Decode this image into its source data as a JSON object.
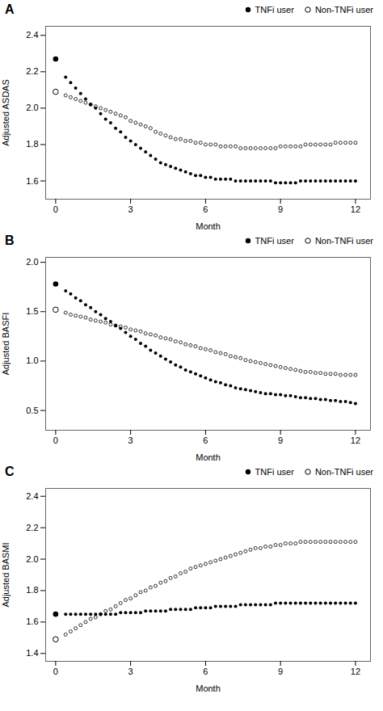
{
  "chart_data": [
    {
      "type": "scatter",
      "title": "A",
      "xlabel": "Month",
      "ylabel": "Adjusted ASDAS",
      "xlim": [
        -0.4,
        12.6
      ],
      "xticks": [
        0,
        3,
        6,
        9,
        12
      ],
      "ylim": [
        1.5,
        2.45
      ],
      "yticks": [
        1.6,
        1.8,
        {
          "value": 2,
          "label": "2.0"
        },
        2.2,
        2.4
      ],
      "legend": "upper right",
      "series": [
        {
          "name": "TNFi user",
          "color": "black",
          "marker": "filled_circle",
          "x": [
            0,
            0.4,
            0.6,
            0.8,
            1.0,
            1.2,
            1.4,
            1.6,
            1.8,
            2.0,
            2.2,
            2.4,
            2.6,
            2.8,
            3.0,
            3.2,
            3.4,
            3.6,
            3.8,
            4.0,
            4.2,
            4.4,
            4.6,
            4.8,
            5.0,
            5.2,
            5.4,
            5.6,
            5.8,
            6.0,
            6.2,
            6.4,
            6.6,
            6.8,
            7.0,
            7.2,
            7.4,
            7.6,
            7.8,
            8.0,
            8.2,
            8.4,
            8.6,
            8.8,
            9.0,
            9.2,
            9.4,
            9.6,
            9.8,
            10.0,
            10.2,
            10.4,
            10.6,
            10.8,
            11.0,
            11.2,
            11.4,
            11.6,
            11.8,
            12.0
          ],
          "values": [
            2.27,
            2.17,
            2.14,
            2.11,
            2.08,
            2.05,
            2.02,
            2.0,
            1.97,
            1.94,
            1.92,
            1.89,
            1.87,
            1.84,
            1.82,
            1.8,
            1.78,
            1.76,
            1.74,
            1.72,
            1.7,
            1.69,
            1.68,
            1.67,
            1.66,
            1.65,
            1.64,
            1.63,
            1.63,
            1.62,
            1.62,
            1.61,
            1.61,
            1.61,
            1.61,
            1.6,
            1.6,
            1.6,
            1.6,
            1.6,
            1.6,
            1.6,
            1.6,
            1.59,
            1.59,
            1.59,
            1.59,
            1.59,
            1.6,
            1.6,
            1.6,
            1.6,
            1.6,
            1.6,
            1.6,
            1.6,
            1.6,
            1.6,
            1.6,
            1.6
          ]
        },
        {
          "name": "Non-TNFi user",
          "color": "black",
          "marker": "open_circle",
          "x": [
            0,
            0.4,
            0.6,
            0.8,
            1.0,
            1.2,
            1.4,
            1.6,
            1.8,
            2.0,
            2.2,
            2.4,
            2.6,
            2.8,
            3.0,
            3.2,
            3.4,
            3.6,
            3.8,
            4.0,
            4.2,
            4.4,
            4.6,
            4.8,
            5.0,
            5.2,
            5.4,
            5.6,
            5.8,
            6.0,
            6.2,
            6.4,
            6.6,
            6.8,
            7.0,
            7.2,
            7.4,
            7.6,
            7.8,
            8.0,
            8.2,
            8.4,
            8.6,
            8.8,
            9.0,
            9.2,
            9.4,
            9.6,
            9.8,
            10.0,
            10.2,
            10.4,
            10.6,
            10.8,
            11.0,
            11.2,
            11.4,
            11.6,
            11.8,
            12.0
          ],
          "values": [
            2.09,
            2.07,
            2.06,
            2.05,
            2.04,
            2.03,
            2.02,
            2.01,
            2.0,
            1.99,
            1.98,
            1.97,
            1.96,
            1.95,
            1.93,
            1.92,
            1.91,
            1.9,
            1.89,
            1.87,
            1.86,
            1.85,
            1.84,
            1.83,
            1.83,
            1.82,
            1.82,
            1.81,
            1.81,
            1.8,
            1.8,
            1.8,
            1.79,
            1.79,
            1.79,
            1.79,
            1.78,
            1.78,
            1.78,
            1.78,
            1.78,
            1.78,
            1.78,
            1.78,
            1.79,
            1.79,
            1.79,
            1.79,
            1.79,
            1.8,
            1.8,
            1.8,
            1.8,
            1.8,
            1.8,
            1.81,
            1.81,
            1.81,
            1.81,
            1.81
          ]
        }
      ]
    },
    {
      "type": "scatter",
      "title": "B",
      "xlabel": "Month",
      "ylabel": "Adjusted BASFI",
      "xlim": [
        -0.4,
        12.6
      ],
      "xticks": [
        0,
        3,
        6,
        9,
        12
      ],
      "ylim": [
        0.3,
        2.05
      ],
      "yticks": [
        0.5,
        {
          "value": 1,
          "label": "1.0"
        },
        1.5,
        {
          "value": 2,
          "label": "2.0"
        }
      ],
      "legend": "upper right",
      "series": [
        {
          "name": "TNFi user",
          "color": "black",
          "marker": "filled_circle",
          "x": [
            0,
            0.4,
            0.6,
            0.8,
            1.0,
            1.2,
            1.4,
            1.6,
            1.8,
            2.0,
            2.2,
            2.4,
            2.6,
            2.8,
            3.0,
            3.2,
            3.4,
            3.6,
            3.8,
            4.0,
            4.2,
            4.4,
            4.6,
            4.8,
            5.0,
            5.2,
            5.4,
            5.6,
            5.8,
            6.0,
            6.2,
            6.4,
            6.6,
            6.8,
            7.0,
            7.2,
            7.4,
            7.6,
            7.8,
            8.0,
            8.2,
            8.4,
            8.6,
            8.8,
            9.0,
            9.2,
            9.4,
            9.6,
            9.8,
            10.0,
            10.2,
            10.4,
            10.6,
            10.8,
            11.0,
            11.2,
            11.4,
            11.6,
            11.8,
            12.0
          ],
          "values": [
            1.78,
            1.71,
            1.68,
            1.64,
            1.61,
            1.57,
            1.54,
            1.5,
            1.47,
            1.43,
            1.4,
            1.36,
            1.33,
            1.29,
            1.25,
            1.22,
            1.18,
            1.15,
            1.11,
            1.08,
            1.05,
            1.02,
            0.99,
            0.96,
            0.94,
            0.91,
            0.89,
            0.87,
            0.85,
            0.83,
            0.81,
            0.79,
            0.78,
            0.76,
            0.75,
            0.73,
            0.72,
            0.71,
            0.7,
            0.69,
            0.68,
            0.67,
            0.67,
            0.66,
            0.66,
            0.65,
            0.65,
            0.64,
            0.63,
            0.63,
            0.62,
            0.62,
            0.61,
            0.61,
            0.6,
            0.6,
            0.59,
            0.59,
            0.58,
            0.57
          ]
        },
        {
          "name": "Non-TNFi user",
          "color": "black",
          "marker": "open_circle",
          "x": [
            0,
            0.4,
            0.6,
            0.8,
            1.0,
            1.2,
            1.4,
            1.6,
            1.8,
            2.0,
            2.2,
            2.4,
            2.6,
            2.8,
            3.0,
            3.2,
            3.4,
            3.6,
            3.8,
            4.0,
            4.2,
            4.4,
            4.6,
            4.8,
            5.0,
            5.2,
            5.4,
            5.6,
            5.8,
            6.0,
            6.2,
            6.4,
            6.6,
            6.8,
            7.0,
            7.2,
            7.4,
            7.6,
            7.8,
            8.0,
            8.2,
            8.4,
            8.6,
            8.8,
            9.0,
            9.2,
            9.4,
            9.6,
            9.8,
            10.0,
            10.2,
            10.4,
            10.6,
            10.8,
            11.0,
            11.2,
            11.4,
            11.6,
            11.8,
            12.0
          ],
          "values": [
            1.52,
            1.49,
            1.47,
            1.46,
            1.45,
            1.44,
            1.42,
            1.41,
            1.4,
            1.39,
            1.37,
            1.36,
            1.35,
            1.34,
            1.32,
            1.31,
            1.3,
            1.28,
            1.27,
            1.26,
            1.24,
            1.23,
            1.22,
            1.2,
            1.19,
            1.17,
            1.16,
            1.15,
            1.13,
            1.12,
            1.11,
            1.09,
            1.08,
            1.07,
            1.05,
            1.04,
            1.03,
            1.01,
            1.0,
            0.99,
            0.98,
            0.97,
            0.96,
            0.95,
            0.94,
            0.93,
            0.92,
            0.91,
            0.9,
            0.89,
            0.89,
            0.88,
            0.88,
            0.87,
            0.87,
            0.87,
            0.86,
            0.86,
            0.86,
            0.86
          ]
        }
      ]
    },
    {
      "type": "scatter",
      "title": "C",
      "xlabel": "Month",
      "ylabel": "Adjusted BASMI",
      "xlim": [
        -0.4,
        12.6
      ],
      "xticks": [
        0,
        3,
        6,
        9,
        12
      ],
      "ylim": [
        1.35,
        2.45
      ],
      "yticks": [
        1.4,
        1.6,
        1.8,
        {
          "value": 2,
          "label": "2.0"
        },
        2.2,
        2.4
      ],
      "legend": "upper right",
      "series": [
        {
          "name": "TNFi user",
          "color": "black",
          "marker": "filled_circle",
          "x": [
            0,
            0.4,
            0.6,
            0.8,
            1.0,
            1.2,
            1.4,
            1.6,
            1.8,
            2.0,
            2.2,
            2.4,
            2.6,
            2.8,
            3.0,
            3.2,
            3.4,
            3.6,
            3.8,
            4.0,
            4.2,
            4.4,
            4.6,
            4.8,
            5.0,
            5.2,
            5.4,
            5.6,
            5.8,
            6.0,
            6.2,
            6.4,
            6.6,
            6.8,
            7.0,
            7.2,
            7.4,
            7.6,
            7.8,
            8.0,
            8.2,
            8.4,
            8.6,
            8.8,
            9.0,
            9.2,
            9.4,
            9.6,
            9.8,
            10.0,
            10.2,
            10.4,
            10.6,
            10.8,
            11.0,
            11.2,
            11.4,
            11.6,
            11.8,
            12.0
          ],
          "values": [
            1.65,
            1.65,
            1.65,
            1.65,
            1.65,
            1.65,
            1.65,
            1.65,
            1.65,
            1.65,
            1.65,
            1.65,
            1.66,
            1.66,
            1.66,
            1.66,
            1.66,
            1.67,
            1.67,
            1.67,
            1.67,
            1.67,
            1.68,
            1.68,
            1.68,
            1.68,
            1.68,
            1.69,
            1.69,
            1.69,
            1.69,
            1.7,
            1.7,
            1.7,
            1.7,
            1.7,
            1.71,
            1.71,
            1.71,
            1.71,
            1.71,
            1.71,
            1.71,
            1.72,
            1.72,
            1.72,
            1.72,
            1.72,
            1.72,
            1.72,
            1.72,
            1.72,
            1.72,
            1.72,
            1.72,
            1.72,
            1.72,
            1.72,
            1.72,
            1.72
          ]
        },
        {
          "name": "Non-TNFi user",
          "color": "black",
          "marker": "open_circle",
          "x": [
            0,
            0.4,
            0.6,
            0.8,
            1.0,
            1.2,
            1.4,
            1.6,
            1.8,
            2.0,
            2.2,
            2.4,
            2.6,
            2.8,
            3.0,
            3.2,
            3.4,
            3.6,
            3.8,
            4.0,
            4.2,
            4.4,
            4.6,
            4.8,
            5.0,
            5.2,
            5.4,
            5.6,
            5.8,
            6.0,
            6.2,
            6.4,
            6.6,
            6.8,
            7.0,
            7.2,
            7.4,
            7.6,
            7.8,
            8.0,
            8.2,
            8.4,
            8.6,
            8.8,
            9.0,
            9.2,
            9.4,
            9.6,
            9.8,
            10.0,
            10.2,
            10.4,
            10.6,
            10.8,
            11.0,
            11.2,
            11.4,
            11.6,
            11.8,
            12.0
          ],
          "values": [
            1.49,
            1.52,
            1.54,
            1.56,
            1.58,
            1.6,
            1.62,
            1.63,
            1.65,
            1.67,
            1.68,
            1.7,
            1.72,
            1.74,
            1.75,
            1.77,
            1.79,
            1.8,
            1.82,
            1.83,
            1.85,
            1.86,
            1.88,
            1.89,
            1.91,
            1.92,
            1.94,
            1.95,
            1.96,
            1.97,
            1.98,
            1.99,
            2.0,
            2.01,
            2.02,
            2.03,
            2.04,
            2.05,
            2.06,
            2.07,
            2.07,
            2.08,
            2.08,
            2.09,
            2.09,
            2.1,
            2.1,
            2.1,
            2.11,
            2.11,
            2.11,
            2.11,
            2.11,
            2.11,
            2.11,
            2.11,
            2.11,
            2.11,
            2.11,
            2.11
          ]
        }
      ]
    }
  ]
}
